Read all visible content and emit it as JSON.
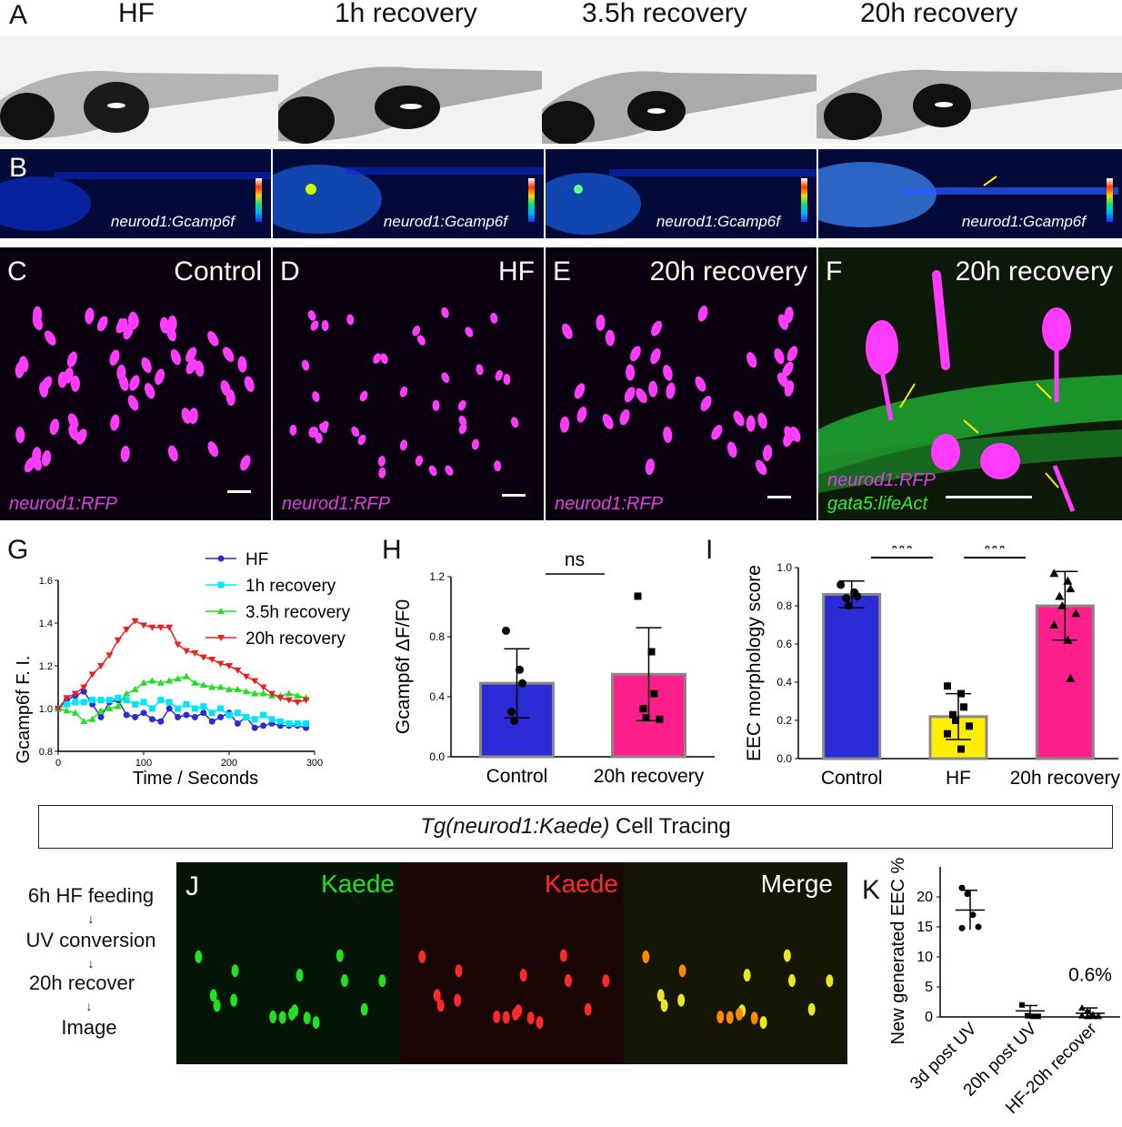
{
  "panelA": {
    "label": "A",
    "titles": [
      "HF",
      "1h recovery",
      "3.5h recovery",
      "20h recovery"
    ]
  },
  "panelB": {
    "label": "B",
    "tags": [
      "neurod1:Gcamp6f",
      "neurod1:Gcamp6f",
      "neurod1:Gcamp6f",
      "neurod1:Gcamp6f"
    ]
  },
  "panelsCF": [
    {
      "label": "C",
      "title": "Control",
      "tag": "neurod1:RFP"
    },
    {
      "label": "D",
      "title": "HF",
      "tag": "neurod1:RFP"
    },
    {
      "label": "E",
      "title": "20h recovery",
      "tag": "neurod1:RFP"
    },
    {
      "label": "F",
      "title": "20h recovery",
      "tag": "neurod1:RFP",
      "tag2": "gata5:lifeAct"
    }
  ],
  "colors": {
    "blue": "#2b2bd6",
    "cyan": "#00e5ff",
    "green": "#22dd22",
    "red": "#e82020",
    "yellow": "#ffee00",
    "pink": "#ff1f8a",
    "magenta": "#ff3cff",
    "kaedeGreen": "#22e022",
    "kaedeRed": "#ff2a2a"
  },
  "panelG": {
    "label": "G",
    "chart_data": {
      "type": "line",
      "xlabel": "Time / Seconds",
      "ylabel": "Gcamp6f F. I.",
      "xlim": [
        0,
        300
      ],
      "ylim": [
        0.8,
        1.6
      ],
      "xticks": [
        "0",
        "100",
        "200",
        "300"
      ],
      "yticks": [
        "0.8",
        "1.0",
        "1.2",
        "1.4",
        "1.6"
      ],
      "legend": "top-right",
      "series": [
        {
          "name": "HF",
          "x": [
            0,
            10,
            20,
            30,
            40,
            50,
            60,
            70,
            80,
            90,
            100,
            110,
            120,
            130,
            140,
            150,
            160,
            170,
            180,
            190,
            200,
            210,
            220,
            230,
            240,
            250,
            260,
            270,
            280,
            290
          ],
          "y": [
            1.0,
            1.04,
            1.06,
            1.08,
            1.02,
            0.96,
            1.03,
            1.04,
            0.97,
            0.96,
            0.98,
            0.95,
            0.94,
            1.0,
            0.96,
            0.97,
            0.96,
            0.98,
            0.94,
            0.96,
            0.98,
            0.93,
            0.96,
            0.91,
            0.92,
            0.93,
            0.92,
            0.92,
            0.92,
            0.91
          ]
        },
        {
          "name": "1h recovery",
          "x": [
            0,
            10,
            20,
            30,
            40,
            50,
            60,
            70,
            80,
            90,
            100,
            110,
            120,
            130,
            140,
            150,
            160,
            170,
            180,
            190,
            200,
            210,
            220,
            230,
            240,
            250,
            260,
            270,
            280,
            290
          ],
          "y": [
            1.0,
            1.02,
            1.03,
            1.03,
            1.04,
            1.04,
            1.04,
            1.05,
            1.04,
            1.02,
            1.03,
            1.0,
            1.04,
            1.03,
            1.0,
            1.02,
            1.0,
            1.01,
            0.98,
            1.0,
            0.97,
            0.98,
            0.96,
            0.95,
            0.97,
            0.95,
            0.94,
            0.93,
            0.93,
            0.93
          ]
        },
        {
          "name": "3.5h recovery",
          "x": [
            0,
            10,
            20,
            30,
            40,
            50,
            60,
            70,
            80,
            90,
            100,
            110,
            120,
            130,
            140,
            150,
            160,
            170,
            180,
            190,
            200,
            210,
            220,
            230,
            240,
            250,
            260,
            270,
            280,
            290
          ],
          "y": [
            1.0,
            0.99,
            0.98,
            0.94,
            0.95,
            0.99,
            1.0,
            1.01,
            1.07,
            1.09,
            1.12,
            1.13,
            1.12,
            1.13,
            1.14,
            1.15,
            1.12,
            1.11,
            1.1,
            1.1,
            1.09,
            1.09,
            1.08,
            1.07,
            1.07,
            1.06,
            1.06,
            1.07,
            1.06,
            1.05
          ]
        },
        {
          "name": "20h recovery",
          "x": [
            0,
            10,
            20,
            30,
            40,
            50,
            60,
            70,
            80,
            90,
            100,
            110,
            120,
            130,
            140,
            150,
            160,
            170,
            180,
            190,
            200,
            210,
            220,
            230,
            240,
            250,
            260,
            270,
            280,
            290
          ],
          "y": [
            1.0,
            1.05,
            1.07,
            1.1,
            1.16,
            1.2,
            1.25,
            1.32,
            1.37,
            1.41,
            1.39,
            1.38,
            1.38,
            1.38,
            1.3,
            1.27,
            1.26,
            1.24,
            1.23,
            1.21,
            1.2,
            1.18,
            1.15,
            1.13,
            1.1,
            1.07,
            1.05,
            1.04,
            1.03,
            1.04
          ]
        }
      ]
    }
  },
  "panelH": {
    "label": "H",
    "chart_data": {
      "type": "bar",
      "ylabel": "Gcamp6f  ΔF/F0",
      "ylim": [
        0,
        1.2
      ],
      "yticks": [
        "0.0",
        "0.4",
        "0.8",
        "1.2"
      ],
      "categories": [
        "Control",
        "20h recovery"
      ],
      "values": [
        0.49,
        0.55
      ],
      "errors": [
        0.23,
        0.31
      ],
      "points": [
        [
          0.84,
          0.58,
          0.49,
          0.3,
          0.24
        ],
        [
          1.07,
          0.7,
          0.42,
          0.32,
          0.26,
          0.25
        ]
      ],
      "significance": "ns"
    }
  },
  "panelI": {
    "label": "I",
    "chart_data": {
      "type": "bar",
      "ylabel": "EEC morphology score",
      "ylim": [
        0,
        1.0
      ],
      "yticks": [
        "0.0",
        "0.2",
        "0.4",
        "0.6",
        "0.8",
        "1.0"
      ],
      "categories": [
        "Control",
        "HF",
        "20h recovery"
      ],
      "values": [
        0.86,
        0.22,
        0.8
      ],
      "errors": [
        0.07,
        0.12,
        0.18
      ],
      "points": [
        [
          0.91,
          0.87,
          0.85,
          0.84,
          0.8
        ],
        [
          0.38,
          0.34,
          0.27,
          0.23,
          0.2,
          0.17,
          0.13,
          0.05
        ],
        [
          0.97,
          0.93,
          0.89,
          0.85,
          0.8,
          0.76,
          0.7,
          0.62,
          0.42
        ]
      ],
      "significance": [
        "***",
        "***"
      ]
    }
  },
  "cellTracing": {
    "title_italic": "Tg(neurod1:Kaede)",
    "title_rest": " Cell Tracing"
  },
  "flow": {
    "steps": [
      "6h HF feeding",
      "UV conversion",
      "20h recover",
      "Image"
    ]
  },
  "panelJ": {
    "label": "J",
    "titles": [
      "Kaede",
      "Kaede",
      "Merge"
    ]
  },
  "panelK": {
    "label": "K",
    "chart_data": {
      "type": "scatter",
      "ylabel": "New generated EEC %",
      "ylim": [
        0,
        25
      ],
      "yticks": [
        "0",
        "5",
        "10",
        "15",
        "20"
      ],
      "categories": [
        "3d post UV",
        "20h post UV",
        "HF-20h recover"
      ],
      "means": [
        17.8,
        1.0,
        0.6
      ],
      "sd": [
        3.3,
        0.9,
        0.9
      ],
      "points": [
        [
          21.5,
          20.5,
          17.0,
          15.0,
          14.8
        ],
        [
          2.0,
          0.2,
          0.1,
          0.1
        ],
        [
          1.5,
          1.0,
          0.4,
          0.2,
          0.2,
          0.1,
          0.1,
          0.1
        ]
      ],
      "annotation": "0.6%"
    }
  }
}
